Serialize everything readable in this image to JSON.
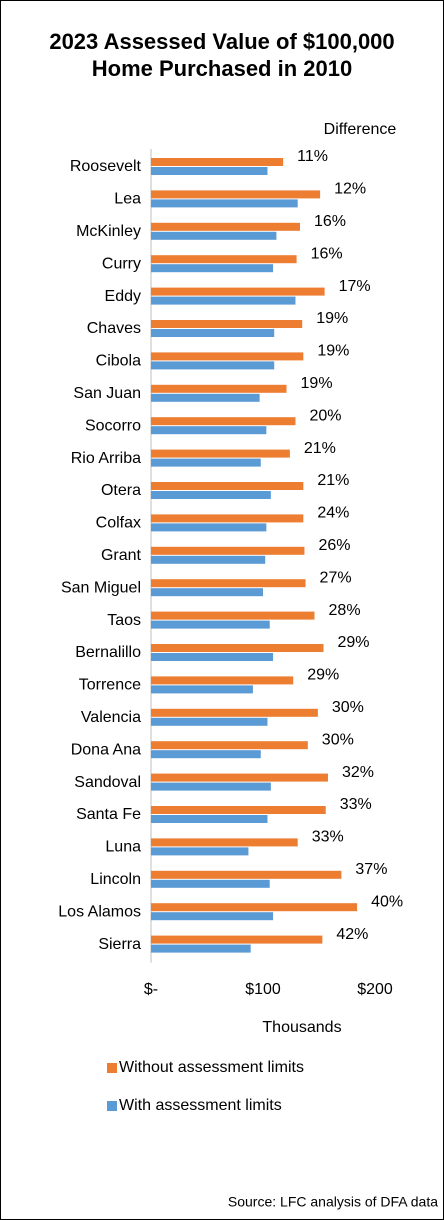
{
  "chart_data": {
    "type": "bar",
    "orientation": "horizontal",
    "title": "2023 Assessed Value of $100,000 Home Purchased in 2010",
    "annotation_header": "Difference",
    "xlabel": "Thousands",
    "source": "Source: LFC analysis of DFA data",
    "categories": [
      "Roosevelt",
      "Lea",
      "McKinley",
      "Curry",
      "Eddy",
      "Chaves",
      "Cibola",
      "San Juan",
      "Socorro",
      "Rio Arriba",
      "Otera",
      "Colfax",
      "Grant",
      "San Miguel",
      "Taos",
      "Bernalillo",
      "Torrence",
      "Valencia",
      "Dona Ana",
      "Sandoval",
      "Santa Fe",
      "Luna",
      "Lincoln",
      "Los Alamos",
      "Sierra"
    ],
    "series": [
      {
        "name": "Without assessment limits",
        "color": "#ed7d31",
        "values": [
          118,
          151,
          133,
          130,
          155,
          135,
          136,
          121,
          129,
          124,
          136,
          136,
          137,
          138,
          146,
          154,
          127,
          149,
          140,
          158,
          156,
          131,
          170,
          184,
          153
        ]
      },
      {
        "name": "With assessment limits",
        "color": "#5b9bd5",
        "values": [
          104,
          131,
          112,
          109,
          129,
          110,
          110,
          97,
          103,
          98,
          107,
          103,
          102,
          100,
          106,
          109,
          91,
          104,
          98,
          107,
          104,
          87,
          106,
          109,
          89
        ]
      }
    ],
    "annotations": [
      "11%",
      "12%",
      "16%",
      "16%",
      "17%",
      "19%",
      "19%",
      "19%",
      "20%",
      "21%",
      "21%",
      "24%",
      "26%",
      "27%",
      "28%",
      "29%",
      "29%",
      "30%",
      "30%",
      "32%",
      "33%",
      "33%",
      "37%",
      "40%",
      "42%"
    ],
    "xlim": [
      0,
      250
    ],
    "xticks": [
      {
        "value": 0,
        "label": "$-"
      },
      {
        "value": 100,
        "label": "$100"
      },
      {
        "value": 200,
        "label": "$200"
      }
    ],
    "grid": false,
    "legend": "bottom"
  }
}
